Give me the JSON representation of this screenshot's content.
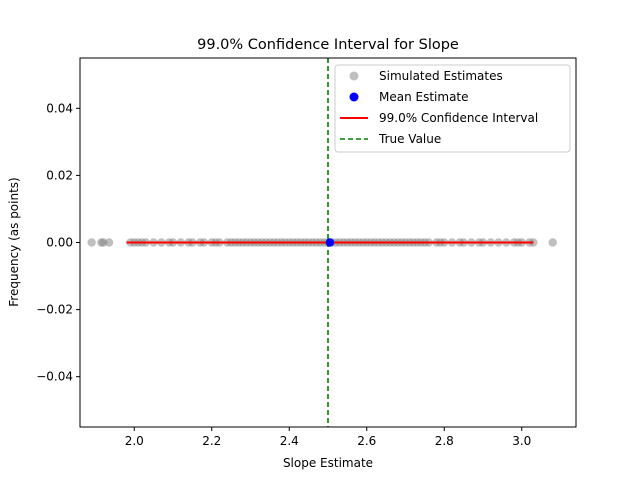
{
  "chart_data": {
    "type": "scatter",
    "title": "99.0% Confidence Interval for Slope",
    "xlabel": "Slope Estimate",
    "ylabel": "Frequency (as points)",
    "xlim": [
      1.86,
      3.14
    ],
    "ylim": [
      -0.055,
      0.055
    ],
    "grid": false,
    "legend_position": "top-right",
    "x_ticks": [
      2.0,
      2.2,
      2.4,
      2.6,
      2.8,
      3.0
    ],
    "x_tick_labels": [
      "2.0",
      "2.2",
      "2.4",
      "2.6",
      "2.8",
      "3.0"
    ],
    "y_ticks": [
      -0.04,
      -0.02,
      0.0,
      0.02,
      0.04
    ],
    "y_tick_labels": [
      "−0.04",
      "−0.02",
      "0.00",
      "0.02",
      "0.04"
    ],
    "simulated_estimates": {
      "name": "Simulated Estimates",
      "color": "#808080",
      "y": 0.0,
      "x": [
        1.89,
        1.915,
        1.92,
        1.935,
        1.99,
        2.0,
        2.01,
        2.02,
        2.03,
        2.05,
        2.07,
        2.09,
        2.1,
        2.12,
        2.14,
        2.15,
        2.17,
        2.18,
        2.2,
        2.21,
        2.22,
        2.24,
        2.25,
        2.26,
        2.27,
        2.28,
        2.29,
        2.3,
        2.31,
        2.32,
        2.33,
        2.34,
        2.35,
        2.36,
        2.37,
        2.38,
        2.39,
        2.4,
        2.41,
        2.42,
        2.43,
        2.44,
        2.45,
        2.46,
        2.47,
        2.48,
        2.49,
        2.5,
        2.51,
        2.52,
        2.53,
        2.54,
        2.55,
        2.56,
        2.57,
        2.58,
        2.59,
        2.6,
        2.61,
        2.62,
        2.63,
        2.64,
        2.65,
        2.66,
        2.67,
        2.68,
        2.69,
        2.7,
        2.71,
        2.72,
        2.73,
        2.74,
        2.75,
        2.76,
        2.78,
        2.79,
        2.8,
        2.82,
        2.84,
        2.85,
        2.87,
        2.89,
        2.9,
        2.92,
        2.94,
        2.96,
        2.98,
        2.99,
        3.0,
        3.02,
        3.03,
        3.08
      ]
    },
    "mean_estimate": {
      "name": "Mean Estimate",
      "color": "#0000ff",
      "x": 2.505,
      "y": 0.0
    },
    "confidence_interval": {
      "name": "99.0% Confidence Interval",
      "color": "#ff0000",
      "lower": 1.98,
      "upper": 3.03,
      "y": 0.0
    },
    "true_value": {
      "name": "True Value",
      "color": "#008000",
      "x": 2.5
    }
  }
}
